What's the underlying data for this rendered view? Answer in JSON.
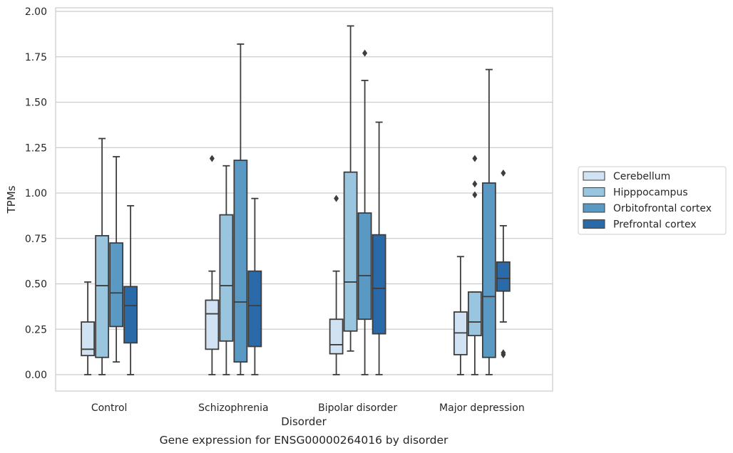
{
  "chart_data": {
    "type": "box",
    "title": "",
    "caption": "Gene expression for ENSG00000264016 by disorder",
    "xlabel": "Disorder",
    "ylabel": "TPMs",
    "ylim": [
      -0.09,
      2.02
    ],
    "yticks": [
      0.0,
      0.25,
      0.5,
      0.75,
      1.0,
      1.25,
      1.5,
      1.75,
      2.0
    ],
    "ytick_labels": [
      "0.00",
      "0.25",
      "0.50",
      "0.75",
      "1.00",
      "1.25",
      "1.50",
      "1.75",
      "2.00"
    ],
    "grid": "horizontal",
    "legend_position": "right",
    "categories": [
      "Control",
      "Schizophrenia",
      "Bipolar disorder",
      "Major depression"
    ],
    "series": [
      {
        "name": "Cerebellum",
        "color": "#d1e3f2",
        "boxes": [
          {
            "whisker_low": 0.0,
            "q1": 0.105,
            "median": 0.14,
            "q3": 0.29,
            "whisker_high": 0.51,
            "outliers": []
          },
          {
            "whisker_low": 0.0,
            "q1": 0.14,
            "median": 0.335,
            "q3": 0.41,
            "whisker_high": 0.57,
            "outliers": [
              1.19
            ]
          },
          {
            "whisker_low": 0.0,
            "q1": 0.115,
            "median": 0.165,
            "q3": 0.305,
            "whisker_high": 0.57,
            "outliers": [
              0.97
            ]
          },
          {
            "whisker_low": 0.0,
            "q1": 0.11,
            "median": 0.23,
            "q3": 0.345,
            "whisker_high": 0.65,
            "outliers": []
          }
        ]
      },
      {
        "name": "Hipppocampus",
        "color": "#9ac5de",
        "boxes": [
          {
            "whisker_low": 0.0,
            "q1": 0.095,
            "median": 0.49,
            "q3": 0.765,
            "whisker_high": 1.3,
            "outliers": []
          },
          {
            "whisker_low": 0.0,
            "q1": 0.185,
            "median": 0.49,
            "q3": 0.88,
            "whisker_high": 1.15,
            "outliers": []
          },
          {
            "whisker_low": 0.13,
            "q1": 0.24,
            "median": 0.51,
            "q3": 1.115,
            "whisker_high": 1.92,
            "outliers": []
          },
          {
            "whisker_low": 0.0,
            "q1": 0.215,
            "median": 0.29,
            "q3": 0.455,
            "whisker_high": 0.455,
            "outliers": [
              1.19,
              1.05,
              0.99
            ]
          }
        ]
      },
      {
        "name": "Orbitofrontal cortex",
        "color": "#5b99c5",
        "boxes": [
          {
            "whisker_low": 0.07,
            "q1": 0.265,
            "median": 0.45,
            "q3": 0.725,
            "whisker_high": 1.2,
            "outliers": []
          },
          {
            "whisker_low": 0.0,
            "q1": 0.07,
            "median": 0.4,
            "q3": 1.18,
            "whisker_high": 1.82,
            "outliers": []
          },
          {
            "whisker_low": 0.0,
            "q1": 0.305,
            "median": 0.545,
            "q3": 0.89,
            "whisker_high": 1.62,
            "outliers": [
              1.77
            ]
          },
          {
            "whisker_low": 0.0,
            "q1": 0.095,
            "median": 0.43,
            "q3": 1.055,
            "whisker_high": 1.68,
            "outliers": []
          }
        ]
      },
      {
        "name": "Prefrontal cortex",
        "color": "#2a6aa8",
        "boxes": [
          {
            "whisker_low": 0.0,
            "q1": 0.175,
            "median": 0.38,
            "q3": 0.485,
            "whisker_high": 0.93,
            "outliers": []
          },
          {
            "whisker_low": 0.0,
            "q1": 0.155,
            "median": 0.38,
            "q3": 0.57,
            "whisker_high": 0.97,
            "outliers": []
          },
          {
            "whisker_low": 0.0,
            "q1": 0.225,
            "median": 0.475,
            "q3": 0.77,
            "whisker_high": 1.39,
            "outliers": []
          },
          {
            "whisker_low": 0.29,
            "q1": 0.46,
            "median": 0.53,
            "q3": 0.62,
            "whisker_high": 0.82,
            "outliers": [
              1.11,
              0.12,
              0.11
            ]
          }
        ]
      }
    ]
  }
}
